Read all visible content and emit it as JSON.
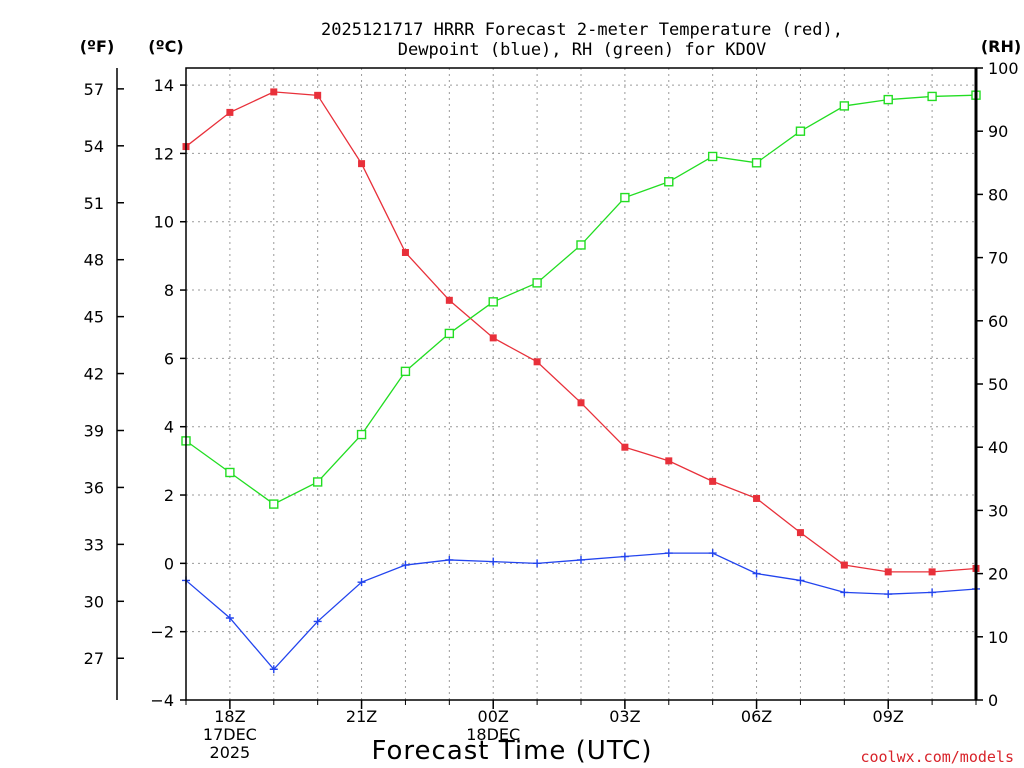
{
  "chart_data": {
    "type": "line",
    "title_line1": "2025121717 HRRR Forecast 2-meter Temperature (red),",
    "title_line2": "Dewpoint (blue), RH (green) for KDOV",
    "xlabel": "Forecast Time (UTC)",
    "unit_left_f": "(ºF)",
    "unit_left_c": "(ºC)",
    "unit_right": "(RH)",
    "credit": "coolwx.com/models",
    "credit_color": "#d8232a",
    "grid": true,
    "x_hours": [
      17,
      18,
      19,
      20,
      21,
      22,
      23,
      24,
      25,
      26,
      27,
      28,
      29,
      30,
      31,
      32,
      33,
      34,
      35
    ],
    "xlim": [
      17,
      35
    ],
    "x_ticks": [
      {
        "hour": 18,
        "lines": [
          "18Z",
          "17DEC",
          "2025"
        ]
      },
      {
        "hour": 21,
        "lines": [
          "21Z"
        ]
      },
      {
        "hour": 24,
        "lines": [
          "00Z",
          "18DEC"
        ]
      },
      {
        "hour": 27,
        "lines": [
          "03Z"
        ]
      },
      {
        "hour": 30,
        "lines": [
          "06Z"
        ]
      },
      {
        "hour": 33,
        "lines": [
          "09Z"
        ]
      }
    ],
    "y_celsius": {
      "lim": [
        -4,
        14.5
      ],
      "ticks": [
        -4,
        -2,
        0,
        2,
        4,
        6,
        8,
        10,
        12,
        14
      ],
      "labels": [
        "−4",
        "−2",
        "0",
        "2",
        "4",
        "6",
        "8",
        "10",
        "12",
        "14"
      ]
    },
    "y_fahrenheit": {
      "ticks": [
        27,
        30,
        33,
        36,
        39,
        42,
        45,
        48,
        51,
        54,
        57
      ],
      "labels": [
        "27",
        "30",
        "33",
        "36",
        "39",
        "42",
        "45",
        "48",
        "51",
        "54",
        "57"
      ]
    },
    "y_rh": {
      "lim": [
        0,
        100
      ],
      "ticks": [
        0,
        10,
        20,
        30,
        40,
        50,
        60,
        70,
        80,
        90,
        100
      ],
      "labels": [
        "0",
        "10",
        "20",
        "30",
        "40",
        "50",
        "60",
        "70",
        "80",
        "90",
        "100"
      ]
    },
    "series": [
      {
        "name": "Temperature",
        "axis": "celsius",
        "color": "#e8303a",
        "marker": "filled-square",
        "values": [
          12.2,
          13.2,
          13.8,
          13.7,
          11.7,
          9.1,
          7.7,
          6.6,
          5.9,
          4.7,
          3.4,
          3.0,
          2.4,
          1.9,
          0.9,
          -0.05,
          -0.25,
          -0.25,
          -0.15
        ]
      },
      {
        "name": "Dewpoint",
        "axis": "celsius",
        "color": "#2244ee",
        "marker": "plus",
        "values": [
          -0.5,
          -1.6,
          -3.1,
          -1.7,
          -0.55,
          -0.05,
          0.1,
          0.05,
          0.0,
          0.1,
          0.2,
          0.3,
          0.3,
          -0.3,
          -0.5,
          -0.85,
          -0.9,
          -0.85,
          -0.75
        ]
      },
      {
        "name": "RH",
        "axis": "rh",
        "color": "#22dd22",
        "marker": "open-square",
        "values": [
          41,
          36,
          31,
          34.5,
          42,
          52,
          58,
          63,
          66,
          72,
          79.5,
          82,
          86,
          85,
          90,
          94,
          95,
          95.5,
          95.7
        ]
      }
    ]
  }
}
